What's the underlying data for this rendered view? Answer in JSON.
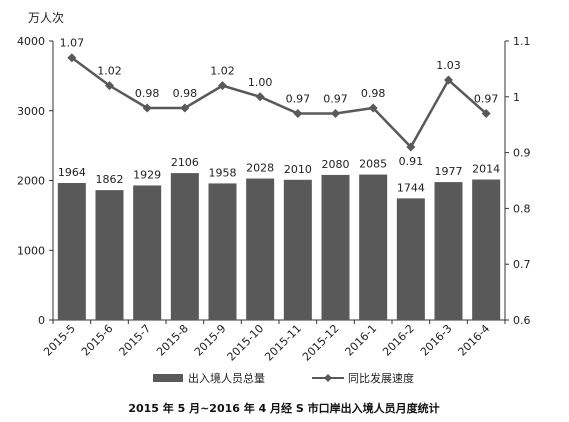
{
  "chart_data": {
    "type": "bar",
    "title": "2015 年 5 月~2016 年 4 月经 S 市口岸出入境人员月度统计",
    "y_unit": "万人次",
    "categories": [
      "2015-5",
      "2015-6",
      "2015-7",
      "2015-8",
      "2015-9",
      "2015-10",
      "2015-11",
      "2015-12",
      "2016-1",
      "2016-2",
      "2016-3",
      "2016-4"
    ],
    "ylim": [
      0,
      4000
    ],
    "yticks": [
      "0",
      "1000",
      "2000",
      "3000",
      "4000"
    ],
    "y2lim": [
      0.6,
      1.1
    ],
    "y2ticks": [
      "0.6",
      "0.7",
      "0.8",
      "0.9",
      "1",
      "1.1"
    ],
    "series": [
      {
        "name": "出入境人员总量",
        "type": "bar",
        "axis": "left",
        "color": "#595959",
        "values": [
          1964,
          1862,
          1929,
          2106,
          1958,
          2028,
          2010,
          2080,
          2085,
          1744,
          1977,
          2014
        ],
        "labels": [
          "1964",
          "1862",
          "1929",
          "2106",
          "1958",
          "2028",
          "2010",
          "2080",
          "2085",
          "1744",
          "1977",
          "2014"
        ]
      },
      {
        "name": "同比发展速度",
        "type": "line",
        "axis": "right",
        "color": "#595959",
        "values": [
          1.07,
          1.02,
          0.98,
          0.98,
          1.02,
          1.0,
          0.97,
          0.97,
          0.98,
          0.91,
          1.03,
          0.97
        ],
        "labels": [
          "1.07",
          "1.02",
          "0.98",
          "0.98",
          "1.02",
          "1.00",
          "0.97",
          "0.97",
          "0.98",
          "0.91",
          "1.03",
          "0.97"
        ]
      }
    ],
    "grid": false,
    "legend": "bottom"
  }
}
